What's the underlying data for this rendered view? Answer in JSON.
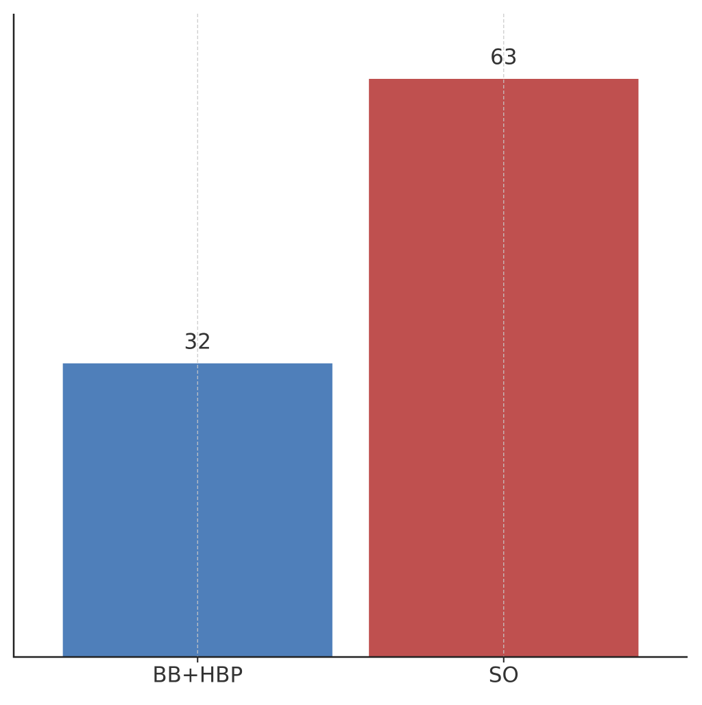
{
  "chart_data": {
    "type": "bar",
    "categories": [
      "BB+HBP",
      "SO"
    ],
    "values": [
      32,
      63
    ],
    "colors": [
      "#4f7fba",
      "#bf504f"
    ],
    "ylim": [
      0,
      70.1
    ],
    "grid": "x"
  }
}
